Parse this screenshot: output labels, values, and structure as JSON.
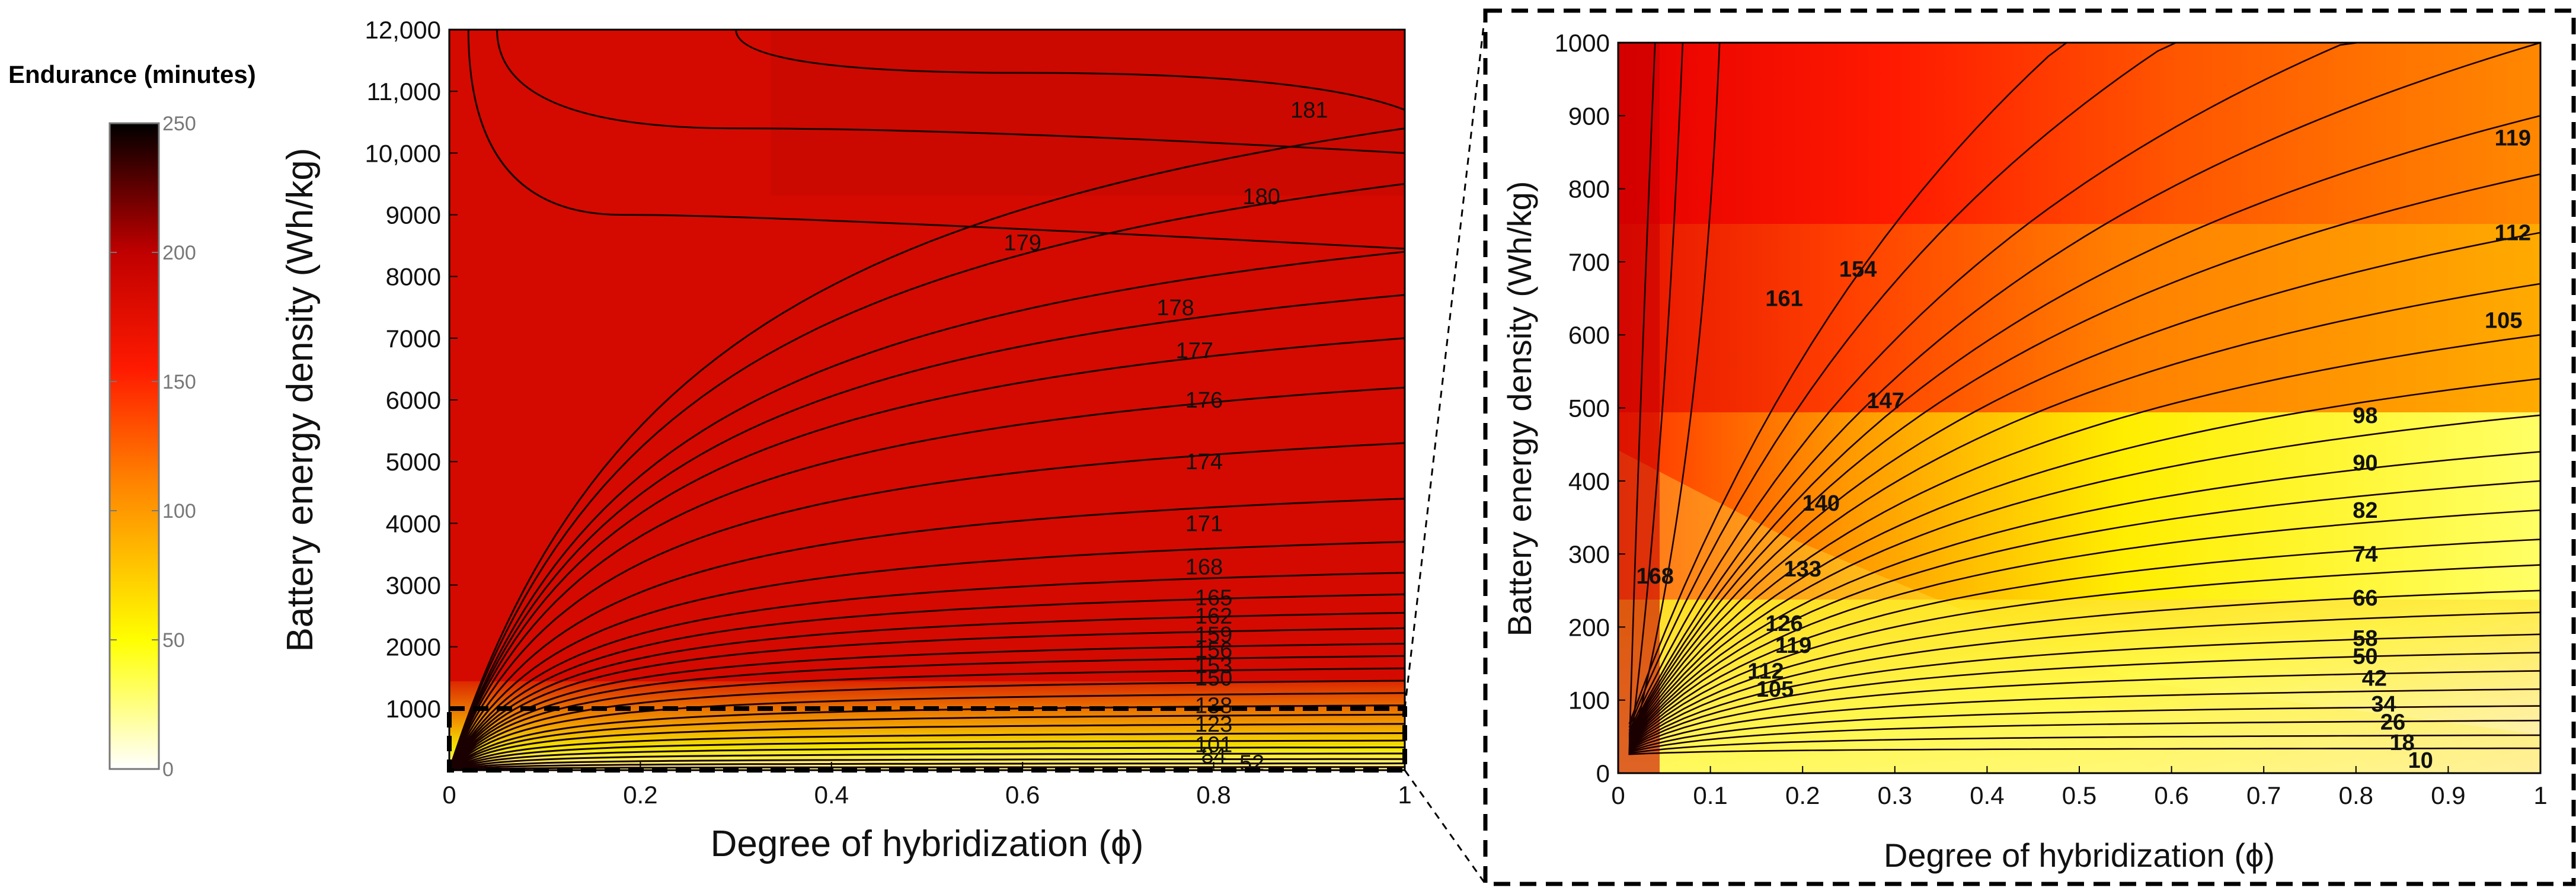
{
  "colorbar": {
    "title": "Endurance (minutes)",
    "ticks": [
      "250",
      "200",
      "150",
      "100",
      "50",
      "0"
    ],
    "range": [
      0,
      250
    ]
  },
  "chart_data": [
    {
      "type": "contour",
      "title": "",
      "xlabel": "Degree of hybridization (ϕ)",
      "ylabel": "Battery energy density (Wh/kg)",
      "xlim": [
        0,
        1
      ],
      "ylim": [
        0,
        12000
      ],
      "xtick_labels": [
        "0",
        "0.2",
        "0.4",
        "0.6",
        "0.8",
        "1"
      ],
      "ytick_labels": [
        "1000",
        "2000",
        "3000",
        "4000",
        "5000",
        "6000",
        "7000",
        "8000",
        "9000",
        "10,000",
        "11,000",
        "12,000"
      ],
      "contour_labels": [
        {
          "text": "181",
          "x": 0.9,
          "y": 10700
        },
        {
          "text": "180",
          "x": 0.85,
          "y": 9300
        },
        {
          "text": "179",
          "x": 0.6,
          "y": 8550
        },
        {
          "text": "178",
          "x": 0.76,
          "y": 7500
        },
        {
          "text": "177",
          "x": 0.78,
          "y": 6800
        },
        {
          "text": "176",
          "x": 0.79,
          "y": 6000
        },
        {
          "text": "174",
          "x": 0.79,
          "y": 5000
        },
        {
          "text": "171",
          "x": 0.79,
          "y": 4000
        },
        {
          "text": "168",
          "x": 0.79,
          "y": 3300
        },
        {
          "text": "165",
          "x": 0.8,
          "y": 2800
        },
        {
          "text": "162",
          "x": 0.8,
          "y": 2500
        },
        {
          "text": "159",
          "x": 0.8,
          "y": 2200
        },
        {
          "text": "156",
          "x": 0.8,
          "y": 1950
        },
        {
          "text": "153",
          "x": 0.8,
          "y": 1700
        },
        {
          "text": "150",
          "x": 0.8,
          "y": 1500
        },
        {
          "text": "138",
          "x": 0.8,
          "y": 1050
        },
        {
          "text": "123",
          "x": 0.8,
          "y": 750
        },
        {
          "text": "101",
          "x": 0.8,
          "y": 420
        },
        {
          "text": "84",
          "x": 0.8,
          "y": 240
        },
        {
          "text": "52",
          "x": 0.84,
          "y": 120
        }
      ],
      "zoom_box": {
        "x": [
          0,
          1
        ],
        "y": [
          0,
          1000
        ]
      }
    },
    {
      "type": "contour",
      "title": "",
      "xlabel": "Degree of hybridization (ϕ)",
      "ylabel": "Battery energy density (Wh/kg)",
      "xlim": [
        0,
        1
      ],
      "ylim": [
        0,
        1000
      ],
      "xtick_labels": [
        "0",
        "0.1",
        "0.2",
        "0.3",
        "0.4",
        "0.5",
        "0.6",
        "0.7",
        "0.8",
        "0.9",
        "1"
      ],
      "ytick_labels": [
        "0",
        "100",
        "200",
        "300",
        "400",
        "500",
        "600",
        "700",
        "800",
        "900",
        "1000"
      ],
      "contour_labels": [
        {
          "text": "168",
          "x": 0.04,
          "y": 270
        },
        {
          "text": "161",
          "x": 0.18,
          "y": 650
        },
        {
          "text": "154",
          "x": 0.26,
          "y": 690
        },
        {
          "text": "147",
          "x": 0.29,
          "y": 510
        },
        {
          "text": "140",
          "x": 0.22,
          "y": 370
        },
        {
          "text": "133",
          "x": 0.2,
          "y": 280
        },
        {
          "text": "126",
          "x": 0.18,
          "y": 205
        },
        {
          "text": "119",
          "x": 0.19,
          "y": 175
        },
        {
          "text": "112",
          "x": 0.16,
          "y": 140
        },
        {
          "text": "105",
          "x": 0.17,
          "y": 115
        },
        {
          "text": "119",
          "x": 0.97,
          "y": 870
        },
        {
          "text": "112",
          "x": 0.97,
          "y": 740
        },
        {
          "text": "105",
          "x": 0.96,
          "y": 620
        },
        {
          "text": "98",
          "x": 0.81,
          "y": 490
        },
        {
          "text": "90",
          "x": 0.81,
          "y": 425
        },
        {
          "text": "82",
          "x": 0.81,
          "y": 360
        },
        {
          "text": "74",
          "x": 0.81,
          "y": 300
        },
        {
          "text": "66",
          "x": 0.81,
          "y": 240
        },
        {
          "text": "58",
          "x": 0.81,
          "y": 185
        },
        {
          "text": "50",
          "x": 0.81,
          "y": 160
        },
        {
          "text": "42",
          "x": 0.82,
          "y": 130
        },
        {
          "text": "34",
          "x": 0.83,
          "y": 95
        },
        {
          "text": "26",
          "x": 0.84,
          "y": 70
        },
        {
          "text": "18",
          "x": 0.85,
          "y": 42
        },
        {
          "text": "10",
          "x": 0.87,
          "y": 18
        }
      ]
    }
  ]
}
